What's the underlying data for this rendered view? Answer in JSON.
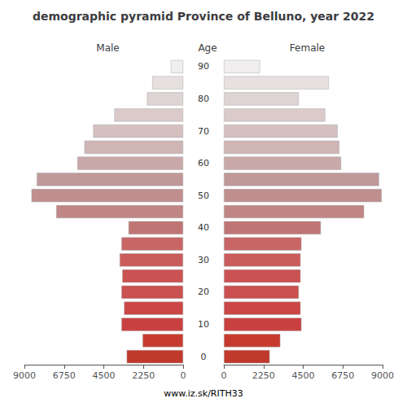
{
  "chart_data": {
    "type": "bar",
    "orientation": "horizontal",
    "title": "demographic pyramid Province of Belluno, year 2022",
    "ylabel": "Age",
    "categories": [
      "0",
      null,
      "10",
      null,
      "20",
      null,
      "30",
      null,
      "40",
      null,
      "50",
      null,
      "60",
      null,
      "70",
      null,
      "80",
      null,
      "90"
    ],
    "series": [
      {
        "name": "Male",
        "colors": [
          "#c0392b",
          "#c63b2e",
          "#c94040",
          "#cb4646",
          "#cb5050",
          "#cb5252",
          "#cb5c5c",
          "#c86666",
          "#c07575",
          "#c08585",
          "#bf8e8e",
          "#c09898",
          "#c8a8a8",
          "#d0b5b5",
          "#d5bfbf",
          "#dacaca",
          "#dfd4d4",
          "#e7e0e0",
          "#f0eeee"
        ],
        "values": [
          3200,
          2300,
          3500,
          3350,
          3500,
          3450,
          3600,
          3500,
          3100,
          7200,
          8600,
          8300,
          6000,
          5600,
          5100,
          3900,
          2050,
          1750,
          700
        ]
      },
      {
        "name": "Female",
        "colors": [
          "#c0392b",
          "#c63b2e",
          "#c94040",
          "#cb4646",
          "#cb5050",
          "#cb5252",
          "#cb5c5c",
          "#c86666",
          "#c07575",
          "#c08585",
          "#bf8e8e",
          "#c09898",
          "#c8a8a8",
          "#d0b5b5",
          "#d5bfbf",
          "#dacaca",
          "#dfd4d4",
          "#e7e0e0",
          "#f0eeee"
        ],
        "values": [
          2600,
          3200,
          4400,
          4350,
          4250,
          4350,
          4350,
          4400,
          5500,
          7950,
          8950,
          8800,
          6650,
          6550,
          6450,
          5750,
          4250,
          5950,
          2050
        ]
      }
    ],
    "xlim": [
      0,
      9000
    ],
    "xticks": [
      0,
      2250,
      4500,
      6750,
      9000
    ],
    "grid": false,
    "annotations": [
      "www.iz.sk/RITH33"
    ]
  }
}
